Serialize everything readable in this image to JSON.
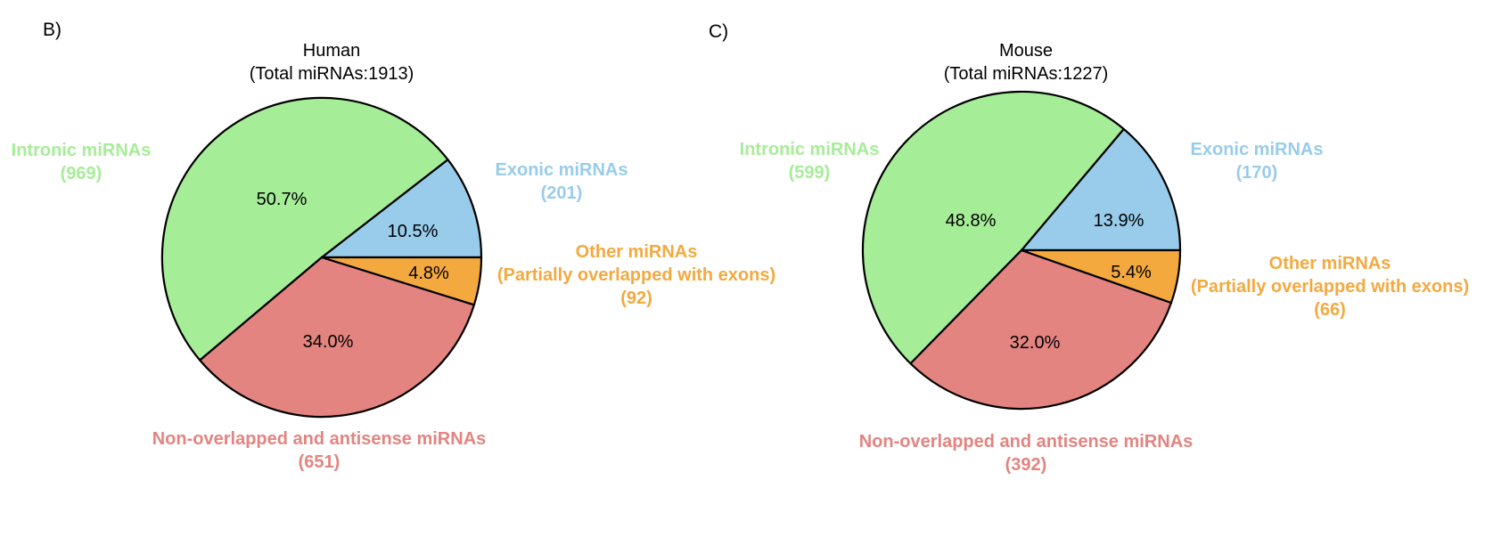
{
  "chart_data": [
    {
      "type": "pie",
      "panel": "B)",
      "title_lines": [
        "Human",
        "(Total miRNAs:1913)"
      ],
      "slices": [
        {
          "key": "exonic",
          "label": "Exonic miRNAs",
          "count_label": "(201)",
          "value": 201,
          "percent_label": "10.5%",
          "color": "#98ccea"
        },
        {
          "key": "intronic",
          "label": "Intronic miRNAs",
          "count_label": "(969)",
          "value": 969,
          "percent_label": "50.7%",
          "color": "#a6ed98"
        },
        {
          "key": "nonoverlapped",
          "label": "Non-overlapped and antisense miRNAs",
          "count_label": "(651)",
          "value": 651,
          "percent_label": "34.0%",
          "color": "#e38480"
        },
        {
          "key": "other",
          "label": "Other miRNAs",
          "sublabel": "(Partially overlapped with exons)",
          "count_label": "(92)",
          "value": 92,
          "percent_label": "4.8%",
          "color": "#f4a93f"
        }
      ]
    },
    {
      "type": "pie",
      "panel": "C)",
      "title_lines": [
        "Mouse",
        "(Total miRNAs:1227)"
      ],
      "slices": [
        {
          "key": "exonic",
          "label": "Exonic miRNAs",
          "count_label": "(170)",
          "value": 170,
          "percent_label": "13.9%",
          "color": "#98ccea"
        },
        {
          "key": "intronic",
          "label": "Intronic miRNAs",
          "count_label": "(599)",
          "value": 599,
          "percent_label": "48.8%",
          "color": "#a6ed98"
        },
        {
          "key": "nonoverlapped",
          "label": "Non-overlapped and antisense miRNAs",
          "count_label": "(392)",
          "value": 392,
          "percent_label": "32.0%",
          "color": "#e38480"
        },
        {
          "key": "other",
          "label": "Other miRNAs",
          "sublabel": "(Partially overlapped with exons)",
          "count_label": "(66)",
          "value": 66,
          "percent_label": "5.4%",
          "color": "#f4a93f"
        }
      ]
    }
  ]
}
